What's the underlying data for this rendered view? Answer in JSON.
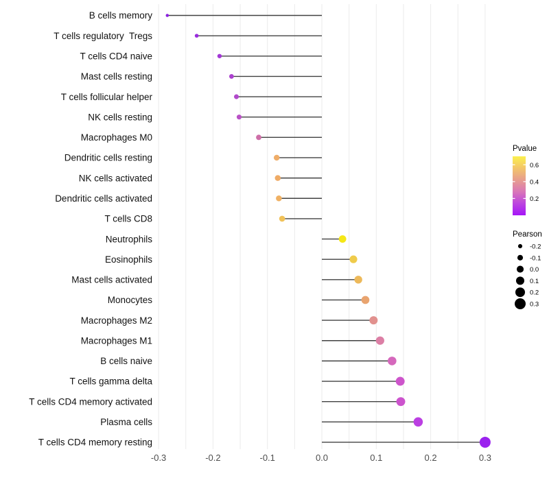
{
  "chart_data": {
    "type": "lollipop",
    "title": "",
    "xlabel": "",
    "ylabel": "",
    "grid": "vertical-only",
    "xlim": [
      -0.35,
      0.35
    ],
    "x_ticks": [
      -0.3,
      -0.2,
      -0.1,
      0.0,
      0.1,
      0.2,
      0.3
    ],
    "x_tick_labels": [
      "-0.3",
      "-0.2",
      "-0.1",
      "0.0",
      "0.1",
      "0.2",
      "0.3"
    ],
    "grid_step": 0.05,
    "categories": [
      "B cells memory",
      "T cells regulatory  Tregs",
      "T cells CD4 naive",
      "Mast cells resting",
      "T cells follicular helper",
      "NK cells resting",
      "Macrophages M0",
      "Dendritic cells resting",
      "NK cells activated",
      "Dendritic cells activated",
      "T cells CD8",
      "Neutrophils",
      "Eosinophils",
      "Mast cells activated",
      "Monocytes",
      "Macrophages M2",
      "Macrophages M1",
      "B cells naive",
      "T cells gamma delta",
      "T cells CD4 memory activated",
      "Plasma cells",
      "T cells CD4 memory resting"
    ],
    "series": [
      {
        "name": "Pearson correlation",
        "values": [
          -0.284,
          -0.23,
          -0.188,
          -0.166,
          -0.157,
          -0.152,
          -0.116,
          -0.083,
          -0.081,
          -0.079,
          -0.073,
          0.038,
          0.058,
          0.067,
          0.08,
          0.095,
          0.107,
          0.129,
          0.144,
          0.145,
          0.177,
          0.3
        ]
      }
    ],
    "point_colors": [
      "#8A1FE0",
      "#992BDE",
      "#A338D6",
      "#AC42CF",
      "#B149CB",
      "#B951C6",
      "#CE6FA8",
      "#EFAD69",
      "#EFAB66",
      "#F0B164",
      "#F1C259",
      "#F5E716",
      "#EFCB4B",
      "#EDB95A",
      "#E9A46F",
      "#E1918E",
      "#DC7FA5",
      "#D568BC",
      "#CD55CB",
      "#CC53CD",
      "#BB3FE2",
      "#9A22EE"
    ],
    "stem_color": "#404040",
    "grid_color": "#ebebeb",
    "axis_text_color": "#4d4d4d",
    "label_text_color": "#111111",
    "legend_pvalue": {
      "title": "Pvalue",
      "tick_labels": [
        "0.6",
        "0.4",
        "0.2"
      ],
      "tick_values": [
        0.6,
        0.4,
        0.2
      ],
      "bar_range": [
        0.0,
        0.7
      ],
      "gradient_top_to_bottom": [
        "#FBF04D",
        "#F3C56A",
        "#E79D8E",
        "#D976B8",
        "#BC45DF",
        "#A515F8"
      ]
    },
    "legend_pearson": {
      "title": "Pearson",
      "tick_labels": [
        "-0.2",
        "-0.1",
        "0.0",
        "0.1",
        "0.2",
        "0.3"
      ],
      "tick_values": [
        -0.2,
        -0.1,
        0.0,
        0.1,
        0.2,
        0.3
      ],
      "dot_color": "#000000"
    }
  }
}
